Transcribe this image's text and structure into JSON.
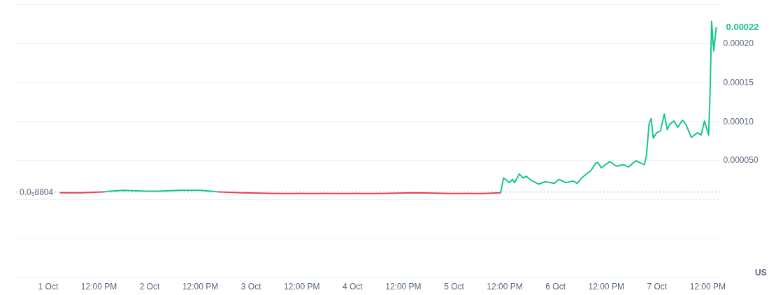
{
  "chart_data": {
    "type": "line",
    "series": [
      {
        "color": "#ea3943",
        "x": [
          "--10-01T03:00",
          "--10-01T08:00",
          "--10-01T13:06"
        ],
        "values": [
          8e-06,
          8e-06,
          9e-06
        ]
      },
      {
        "color": "#16c784",
        "x": [
          "--10-01T13:06",
          "--10-01T14:48",
          "--10-01T18:00",
          "--10-01T23:00",
          "--10-02T02:12",
          "--10-02T07:12",
          "--10-02T12:06",
          "--10-02T16:30"
        ],
        "values": [
          9e-06,
          1e-05,
          1.1e-05,
          1e-05,
          1e-05,
          1.1e-05,
          1.1e-05,
          9e-06
        ]
      },
      {
        "color": "#ea3943",
        "x": [
          "--10-02T16:30",
          "--10-02T21:54",
          "--10-03T06:06",
          "--10-03T14:18",
          "--10-03T22:30",
          "--10-04T06:42",
          "--10-04T14:54",
          "--10-04T23:06",
          "--10-05T07:18",
          "--10-05T11:06"
        ],
        "values": [
          9e-06,
          8e-06,
          7e-06,
          7e-06,
          7e-06,
          7e-06,
          8e-06,
          7e-06,
          7e-06,
          8e-06
        ]
      },
      {
        "color": "#16c784",
        "x": [
          "--10-05T11:06",
          "--10-05T11:48",
          "--10-05T12:18",
          "--10-05T13:06",
          "--10-05T13:54",
          "--10-05T14:24",
          "--10-05T15:30",
          "--10-05T16:24",
          "--10-05T17:12",
          "--10-05T18:18",
          "--10-05T20:06",
          "--10-05T21:36",
          "--10-05T23:48",
          "--10-06T00:54",
          "--10-06T02:30",
          "--10-06T04:18",
          "--10-06T05:12",
          "--10-06T06:18",
          "--10-06T07:36",
          "--10-06T08:24",
          "--10-06T09:36",
          "--10-06T10:06",
          "--10-06T10:54",
          "--10-06T12:54",
          "--10-06T14:30",
          "--10-06T16:12",
          "--10-06T17:18",
          "--10-06T19:06",
          "--10-06T21:06",
          "--10-06T21:36",
          "--10-06T22:12",
          "--10-06T22:42",
          "--10-06T23:12",
          "--10-07T00:00",
          "--10-07T00:54",
          "--10-07T01:48",
          "--10-07T02:30",
          "--10-07T03:06",
          "--10-07T04:06",
          "--10-07T05:00",
          "--10-07T06:06",
          "--10-07T06:54",
          "--10-07T08:12",
          "--10-07T09:42",
          "--10-07T10:30",
          "--10-07T11:18",
          "--10-07T12:18",
          "--10-07T12:42",
          "--10-07T13:00",
          "--10-07T13:30",
          "--10-07T14:06"
        ],
        "values": [
          8e-06,
          2.7e-05,
          2.5e-05,
          2.1e-05,
          2.5e-05,
          2.1e-05,
          3.2e-05,
          2.7e-05,
          2.9e-05,
          2.4e-05,
          1.9e-05,
          2.2e-05,
          2e-05,
          2.5e-05,
          2.1e-05,
          2.3e-05,
          2e-05,
          2.7e-05,
          3.3e-05,
          3.6e-05,
          4.6e-05,
          4.7e-05,
          4e-05,
          4.8e-05,
          4.2e-05,
          4.4e-05,
          4.1e-05,
          4.9e-05,
          4.4e-05,
          5.6e-05,
          9.6e-05,
          0.000103,
          7.8e-05,
          8.5e-05,
          8.7e-05,
          0.000109,
          8.9e-05,
          9.6e-05,
          0.0001,
          9.2e-05,
          0.000101,
          9.6e-05,
          7.9e-05,
          8.5e-05,
          8.2e-05,
          0.0001,
          8.2e-05,
          0.00015,
          0.000228,
          0.00019,
          0.00022
        ]
      }
    ],
    "xlim": [
      "--09-30T16:00",
      "--10-07T15:00"
    ],
    "xticks": [
      {
        "value": "--10-01",
        "label": "1 Oct"
      },
      {
        "value": "--10-01T12:00",
        "label": "12:00 PM"
      },
      {
        "value": "--10-02",
        "label": "2 Oct"
      },
      {
        "value": "--10-02T12:00",
        "label": "12:00 PM"
      },
      {
        "value": "--10-03",
        "label": "3 Oct"
      },
      {
        "value": "--10-03T12:00",
        "label": "12:00 PM"
      },
      {
        "value": "--10-04",
        "label": "4 Oct"
      },
      {
        "value": "--10-04T12:00",
        "label": "12:00 PM"
      },
      {
        "value": "--10-05",
        "label": "5 Oct"
      },
      {
        "value": "--10-05T12:00",
        "label": "12:00 PM"
      },
      {
        "value": "--10-06",
        "label": "6 Oct"
      },
      {
        "value": "--10-06T12:00",
        "label": "12:00 PM"
      },
      {
        "value": "--10-07",
        "label": "7 Oct"
      },
      {
        "value": "--10-07T12:00",
        "label": "12:00 PM"
      }
    ],
    "ylim": [
      -0.0001,
      0.00025
    ],
    "yticks": [
      {
        "value": -0.0001,
        "label": null
      },
      {
        "value": -5e-05,
        "label": null
      },
      {
        "value": 0,
        "label": null
      },
      {
        "value": 5e-05,
        "label": "0.000050"
      },
      {
        "value": 0.0001,
        "label": "0.00010"
      },
      {
        "value": 0.00015,
        "label": "0.00015"
      },
      {
        "value": 0.0002,
        "label": "0.00020"
      },
      {
        "value": 0.00025,
        "label": null
      }
    ],
    "grid": "y",
    "ref_lines": [
      {
        "axis": "y",
        "value": 8.804e-06,
        "label": "0.0₅8804",
        "line_style": "dotted",
        "color": "#a6b0c3"
      }
    ],
    "annotations": [
      {
        "text": "0.00022",
        "x": "--10-07T14:06",
        "y": 0.00022
      },
      "US"
    ]
  }
}
